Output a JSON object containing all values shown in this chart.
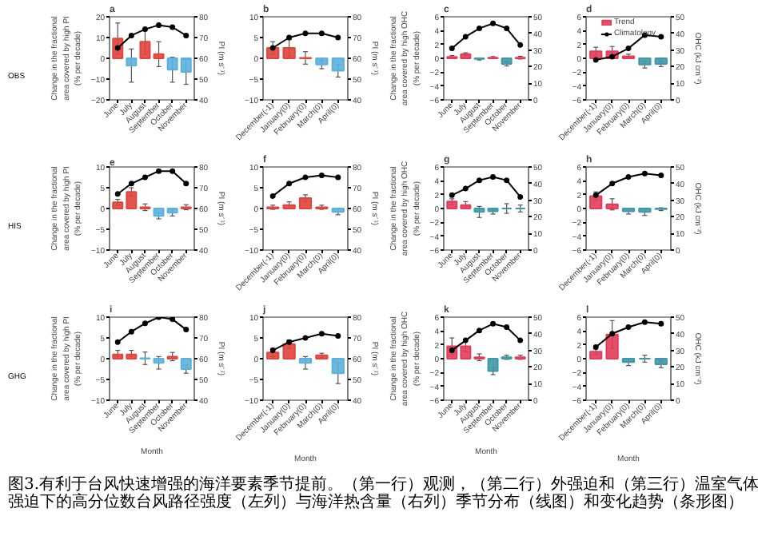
{
  "chart_data": [
    {
      "type": "bar",
      "title": "a",
      "annotations": [
        "OBS"
      ],
      "categories": [
        "June",
        "July",
        "August",
        "September",
        "October",
        "November"
      ],
      "ylabel": "Change in the fractional area covered by high PI (% per decade)",
      "y2label": "PI (m s⁻¹)",
      "ylim": [
        -20,
        20
      ],
      "yticks": [
        -20,
        -10,
        0,
        10,
        20
      ],
      "y2lim": [
        40,
        80
      ],
      "y2ticks": [
        40,
        50,
        60,
        70,
        80
      ],
      "marker": "circle",
      "series": [
        {
          "type": "bar",
          "colors": [
            "#e0443c",
            "#5cb0dc",
            "#e0443c",
            "#e0443c",
            "#5cb0dc",
            "#5cb0dc"
          ],
          "values": [
            9.5,
            -3.5,
            8,
            2,
            -5.5,
            -6.5
          ],
          "errors": [
            7.5,
            8,
            6,
            6,
            6,
            6
          ]
        },
        {
          "type": "line",
          "axis": "y2",
          "color": "#000000",
          "values": [
            65,
            71,
            74,
            76,
            75,
            71
          ]
        }
      ]
    },
    {
      "type": "bar",
      "title": "b",
      "categories": [
        "December(-1)",
        "January(0)",
        "February(0)",
        "March(0)",
        "April(0)"
      ],
      "y2label": "PI (m s⁻¹)",
      "ylim": [
        -10,
        10
      ],
      "yticks": [
        -10,
        -5,
        0,
        5,
        10
      ],
      "y2lim": [
        40,
        80
      ],
      "y2ticks": [
        40,
        50,
        60,
        70,
        80
      ],
      "marker": "circle",
      "series": [
        {
          "type": "bar",
          "colors": [
            "#e0443c",
            "#e0443c",
            "#e0443c",
            "#5cb0dc",
            "#5cb0dc"
          ],
          "values": [
            2.5,
            2.5,
            0.1,
            -1.5,
            -3
          ],
          "errors": [
            1.5,
            2,
            1.5,
            1,
            1.5
          ]
        },
        {
          "type": "line",
          "axis": "y2",
          "color": "#000000",
          "values": [
            65,
            70,
            72,
            72,
            70
          ]
        }
      ]
    },
    {
      "type": "bar",
      "title": "c",
      "categories": [
        "June",
        "July",
        "August",
        "September",
        "October",
        "November"
      ],
      "ylabel": "Change in the fractional area covered by high OHC (% per decade)",
      "ylim": [
        -6,
        6
      ],
      "yticks": [
        -6,
        -4,
        -2,
        0,
        2,
        4,
        6
      ],
      "y2lim": [
        0,
        50
      ],
      "y2ticks": [
        0,
        10,
        20,
        30,
        40,
        50
      ],
      "marker": "circle",
      "series": [
        {
          "type": "bar",
          "colors": [
            "#e23c5a",
            "#e23c5a",
            "#3f98a8",
            "#e23c5a",
            "#3f98a8",
            "#e23c5a"
          ],
          "values": [
            0.2,
            0.6,
            -0.1,
            0.1,
            -0.8,
            0.1
          ],
          "errors": [
            0.2,
            0.2,
            0.15,
            0.15,
            0.3,
            0.2
          ]
        },
        {
          "type": "line",
          "axis": "y2",
          "color": "#000000",
          "values": [
            31,
            38,
            43,
            46,
            43,
            33
          ]
        }
      ]
    },
    {
      "type": "bar",
      "title": "d",
      "legend": "top",
      "categories": [
        "December(-1)",
        "January(0)",
        "February(0)",
        "March(0)",
        "April(0)"
      ],
      "y2label": "OHC (kJ cm⁻²)",
      "ylim": [
        -6,
        6
      ],
      "yticks": [
        -6,
        -4,
        -2,
        0,
        2,
        4,
        6
      ],
      "y2lim": [
        0,
        50
      ],
      "y2ticks": [
        0,
        10,
        20,
        30,
        40,
        50
      ],
      "marker": "circle",
      "series": [
        {
          "type": "bar",
          "name": "Trend",
          "colors": [
            "#e23c5a",
            "#e23c5a",
            "#e23c5a",
            "#3f98a8",
            "#3f98a8"
          ],
          "values": [
            1,
            1,
            0.3,
            -0.9,
            -0.8
          ],
          "errors": [
            0.6,
            0.7,
            0.3,
            0.5,
            0.4
          ]
        },
        {
          "type": "line",
          "name": "Climatology",
          "axis": "y2",
          "color": "#000000",
          "values": [
            24,
            26,
            31,
            39,
            38
          ]
        }
      ]
    },
    {
      "type": "bar",
      "title": "e",
      "annotations": [
        "HIS"
      ],
      "categories": [
        "June",
        "July",
        "August",
        "September",
        "October",
        "November"
      ],
      "ylabel": "Change in the fractional area covered by high PI (% per decade)",
      "y2label": "PI (m s⁻¹)",
      "ylim": [
        -10,
        10
      ],
      "yticks": [
        -10,
        -5,
        0,
        5,
        10
      ],
      "y2lim": [
        40,
        80
      ],
      "y2ticks": [
        40,
        50,
        60,
        70,
        80
      ],
      "marker": "circle",
      "series": [
        {
          "type": "bar",
          "colors": [
            "#e0443c",
            "#e0443c",
            "#e0443c",
            "#5cb0dc",
            "#5cb0dc",
            "#e0443c"
          ],
          "values": [
            1.5,
            4,
            0.3,
            -1.8,
            -1,
            0.3
          ],
          "errors": [
            0.7,
            1,
            0.8,
            0.7,
            0.8,
            0.6
          ]
        },
        {
          "type": "line",
          "axis": "y2",
          "color": "#000000",
          "values": [
            67,
            72,
            75,
            78,
            78,
            72
          ]
        }
      ]
    },
    {
      "type": "bar",
      "title": "f",
      "categories": [
        "December(-1)",
        "January(0)",
        "February(0)",
        "March(0)",
        "April(0)"
      ],
      "y2label": "PI (m s⁻¹)",
      "ylim": [
        -10,
        10
      ],
      "yticks": [
        -10,
        -5,
        0,
        5,
        10
      ],
      "y2lim": [
        40,
        80
      ],
      "y2ticks": [
        40,
        50,
        60,
        70,
        80
      ],
      "marker": "circle",
      "series": [
        {
          "type": "bar",
          "colors": [
            "#e0443c",
            "#e0443c",
            "#e0443c",
            "#e0443c",
            "#5cb0dc"
          ],
          "values": [
            0.3,
            0.8,
            2.5,
            0.3,
            -0.8
          ],
          "errors": [
            0.5,
            0.8,
            0.8,
            0.5,
            0.7
          ]
        },
        {
          "type": "line",
          "axis": "y2",
          "color": "#000000",
          "values": [
            66,
            72,
            75,
            76,
            75
          ]
        }
      ]
    },
    {
      "type": "bar",
      "title": "g",
      "categories": [
        "June",
        "July",
        "August",
        "September",
        "October",
        "November"
      ],
      "ylabel": "Change in the fractional area covered by high OHC (% per decade)",
      "ylim": [
        -6,
        6
      ],
      "yticks": [
        -6,
        -4,
        -2,
        0,
        2,
        4,
        6
      ],
      "y2lim": [
        0,
        50
      ],
      "y2ticks": [
        0,
        10,
        20,
        30,
        40,
        50
      ],
      "marker": "circle",
      "series": [
        {
          "type": "bar",
          "colors": [
            "#e23c5a",
            "#e23c5a",
            "#3f98a8",
            "#3f98a8",
            "#3f98a8",
            "#3f98a8"
          ],
          "values": [
            1,
            0.5,
            -0.5,
            -0.4,
            0,
            0
          ],
          "errors": [
            0.4,
            0.5,
            0.8,
            0.4,
            0.7,
            0.5
          ]
        },
        {
          "type": "line",
          "axis": "y2",
          "color": "#000000",
          "values": [
            33,
            37,
            42,
            44,
            42,
            32
          ]
        }
      ]
    },
    {
      "type": "bar",
      "title": "h",
      "categories": [
        "December(-1)",
        "January(0)",
        "February(0)",
        "March(0)",
        "April(0)"
      ],
      "y2label": "OHC (kJ cm⁻²)",
      "ylim": [
        -6,
        6
      ],
      "yticks": [
        -6,
        -4,
        -2,
        0,
        2,
        4,
        6
      ],
      "y2lim": [
        0,
        50
      ],
      "y2ticks": [
        0,
        10,
        20,
        30,
        40,
        50
      ],
      "marker": "circle",
      "series": [
        {
          "type": "bar",
          "colors": [
            "#e23c5a",
            "#e23c5a",
            "#3f98a8",
            "#3f98a8",
            "#3f98a8"
          ],
          "values": [
            1.8,
            0.6,
            -0.4,
            -0.5,
            -0.1
          ],
          "errors": [
            0.6,
            0.8,
            0.4,
            0.5,
            0.2
          ]
        },
        {
          "type": "line",
          "axis": "y2",
          "color": "#000000",
          "values": [
            33,
            40,
            44,
            46,
            45
          ]
        }
      ]
    },
    {
      "type": "bar",
      "title": "i",
      "annotations": [
        "GHG"
      ],
      "xlabel": "Month",
      "categories": [
        "June",
        "July",
        "August",
        "September",
        "October",
        "November"
      ],
      "ylabel": "Change in the fractional area covered by high PI (% per decade)",
      "y2label": "PI (m s⁻¹)",
      "ylim": [
        -10,
        10
      ],
      "yticks": [
        -10,
        -5,
        0,
        5,
        10
      ],
      "y2lim": [
        40,
        80
      ],
      "y2ticks": [
        40,
        50,
        60,
        70,
        80
      ],
      "marker": "circle",
      "series": [
        {
          "type": "bar",
          "colors": [
            "#e0443c",
            "#e0443c",
            "#5cb0dc",
            "#5cb0dc",
            "#e0443c",
            "#5cb0dc"
          ],
          "values": [
            1,
            1,
            0.1,
            -1,
            0.5,
            -2.5
          ],
          "errors": [
            1,
            1,
            1.5,
            1.5,
            1,
            1
          ]
        },
        {
          "type": "line",
          "axis": "y2",
          "color": "#000000",
          "values": [
            68,
            73,
            77,
            80,
            79,
            74
          ]
        }
      ]
    },
    {
      "type": "bar",
      "title": "j",
      "xlabel": "Month",
      "categories": [
        "December(-1)",
        "January(0)",
        "February(0)",
        "March(0)",
        "April(0)"
      ],
      "y2label": "PI (m s⁻¹)",
      "ylim": [
        -10,
        10
      ],
      "yticks": [
        -10,
        -5,
        0,
        5,
        10
      ],
      "y2lim": [
        40,
        80
      ],
      "y2ticks": [
        40,
        50,
        60,
        70,
        80
      ],
      "marker": "circle",
      "series": [
        {
          "type": "bar",
          "colors": [
            "#e0443c",
            "#e0443c",
            "#5cb0dc",
            "#e0443c",
            "#5cb0dc"
          ],
          "values": [
            1.5,
            3.5,
            -1,
            0.8,
            -3.5
          ],
          "errors": [
            1,
            1,
            1.5,
            0.5,
            2.5
          ]
        },
        {
          "type": "line",
          "axis": "y2",
          "color": "#000000",
          "values": [
            64,
            68,
            70,
            72,
            71
          ]
        }
      ]
    },
    {
      "type": "bar",
      "title": "k",
      "xlabel": "Month",
      "categories": [
        "June",
        "July",
        "August",
        "September",
        "October",
        "November"
      ],
      "ylabel": "Change in the fractional area covered by high OHC (% per decade)",
      "ylim": [
        -6,
        6
      ],
      "yticks": [
        -6,
        -4,
        -2,
        0,
        2,
        4,
        6
      ],
      "y2lim": [
        0,
        50
      ],
      "y2ticks": [
        0,
        10,
        20,
        30,
        40,
        50
      ],
      "marker": "circle",
      "series": [
        {
          "type": "bar",
          "colors": [
            "#e23c5a",
            "#e23c5a",
            "#e23c5a",
            "#3f98a8",
            "#3f98a8",
            "#e23c5a"
          ],
          "values": [
            1.8,
            1.8,
            0.2,
            -1.8,
            0.2,
            0.2
          ],
          "errors": [
            1.2,
            0.8,
            0.5,
            0.5,
            0.3,
            0.3
          ]
        },
        {
          "type": "line",
          "axis": "y2",
          "color": "#000000",
          "values": [
            30,
            36,
            42,
            46,
            44,
            36
          ]
        }
      ]
    },
    {
      "type": "bar",
      "title": "l",
      "xlabel": "Month",
      "categories": [
        "December(-1)",
        "January(0)",
        "February(0)",
        "March(0)",
        "April(0)"
      ],
      "y2label": "OHC (kJ cm⁻²)",
      "ylim": [
        -6,
        6
      ],
      "yticks": [
        -6,
        -4,
        -2,
        0,
        2,
        4,
        6
      ],
      "y2lim": [
        0,
        50
      ],
      "y2ticks": [
        0,
        10,
        20,
        30,
        40,
        50
      ],
      "marker": "circle",
      "series": [
        {
          "type": "bar",
          "colors": [
            "#e23c5a",
            "#e23c5a",
            "#3f98a8",
            "#3f98a8",
            "#3f98a8"
          ],
          "values": [
            1,
            3.5,
            -0.5,
            0,
            -0.8
          ],
          "errors": [
            0.4,
            2,
            0.5,
            0.5,
            0.5
          ]
        },
        {
          "type": "line",
          "axis": "y2",
          "color": "#000000",
          "values": [
            32,
            40,
            44,
            47,
            46
          ]
        }
      ]
    },
    {
      "type": "other",
      "annotations": [
        "图3.有利于台风快速增强的海洋要素季节提前。（第一行）观测，（第二行）外强迫和（第三行）温室气体强迫",
        "下的高分位数台风路径强度（左列）与海洋热含量（右列）季节分布（线图）和变化趋势（条形图）"
      ]
    }
  ]
}
